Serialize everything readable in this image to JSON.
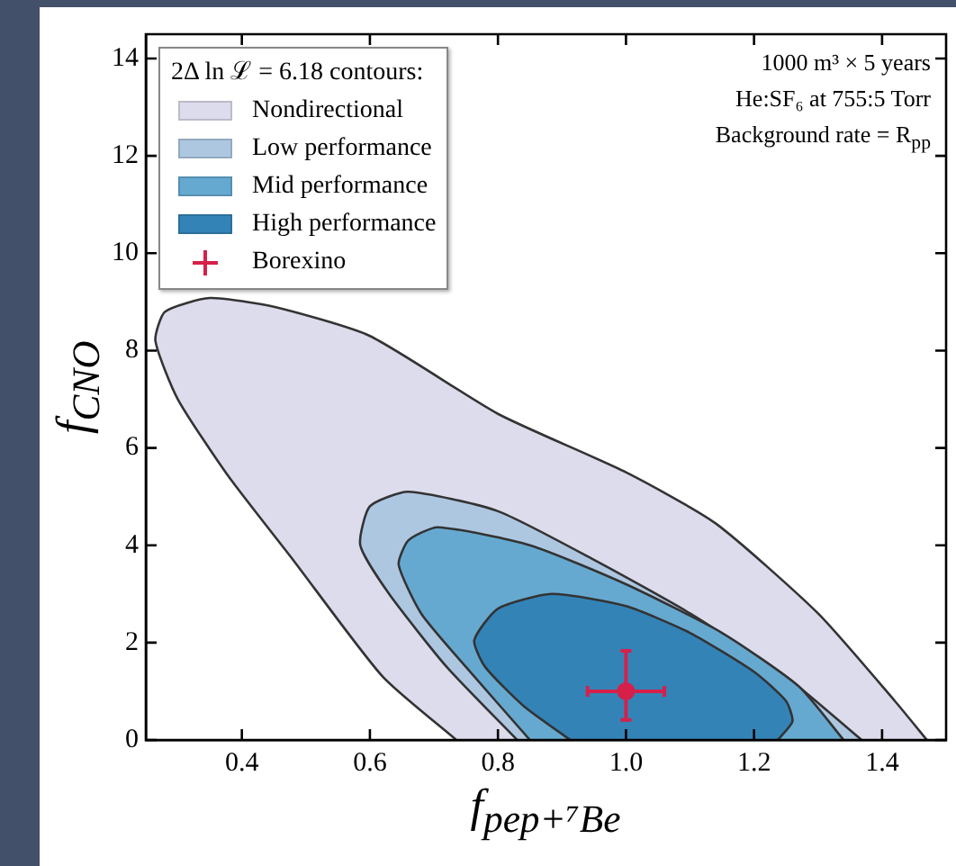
{
  "chart_data": {
    "type": "area",
    "legend_title": "2Δ ln ℒ = 6.18 contours:",
    "xlabel": "f$_{pep+⁷Be}$",
    "ylabel": "f$_{CNO}$",
    "annotations": [
      "1000 m³ × 5 years",
      "He:SF₆ at 755:5 Torr",
      "Background rate = R$_{pp}$"
    ],
    "xlim": [
      0.25,
      1.5
    ],
    "ylim": [
      0,
      14.5
    ],
    "xticks": [
      0.4,
      0.6,
      0.8,
      {
        "value": 1,
        "label": "1.0"
      },
      1.2,
      1.4
    ],
    "yticks": [
      0,
      2,
      4,
      6,
      8,
      10,
      12,
      14
    ],
    "legend": "top left",
    "grid": false,
    "series": [
      {
        "name": "Nondirectional",
        "color": "#dcdcec",
        "x": [
          0.735,
          0.62,
          0.48,
          0.38,
          0.3,
          0.265,
          0.28,
          0.35,
          0.45,
          0.6,
          0.8,
          1.0,
          1.14,
          1.3,
          1.42,
          1.47
        ],
        "values": [
          0,
          1.3,
          3.7,
          5.4,
          7.0,
          8.2,
          8.8,
          9.08,
          8.9,
          8.3,
          6.7,
          5.5,
          4.45,
          2.6,
          0.8,
          0
        ]
      },
      {
        "name": "Low performance",
        "color": "#aec7e1",
        "x": [
          0.83,
          0.72,
          0.63,
          0.585,
          0.6,
          0.66,
          0.8,
          0.95,
          1.1,
          1.25,
          1.368
        ],
        "values": [
          0,
          1.5,
          3.0,
          4.0,
          4.8,
          5.1,
          4.7,
          3.7,
          2.6,
          1.3,
          0
        ]
      },
      {
        "name": "Mid performance",
        "color": "#66a9d0",
        "x": [
          0.85,
          0.75,
          0.68,
          0.645,
          0.66,
          0.706,
          0.85,
          1.0,
          1.15,
          1.27,
          1.34
        ],
        "values": [
          0,
          1.5,
          2.6,
          3.6,
          4.1,
          4.37,
          4.0,
          3.2,
          2.2,
          1.1,
          0
        ]
      },
      {
        "name": "High performance",
        "color": "#3383b7",
        "x": [
          0.913,
          0.84,
          0.78,
          0.763,
          0.8,
          0.884,
          1.0,
          1.1,
          1.2,
          1.25,
          1.26,
          1.237
        ],
        "values": [
          0,
          0.7,
          1.5,
          2.05,
          2.7,
          3.0,
          2.75,
          2.2,
          1.4,
          0.8,
          0.38,
          0
        ]
      },
      {
        "name": "Borexino",
        "type": "scatter",
        "color": "#d6204a",
        "x": [
          1.0
        ],
        "values": [
          1.0
        ],
        "errors": [
          [
            0.41,
            1.83
          ]
        ],
        "xerrors": [
          0.06
        ]
      }
    ]
  }
}
